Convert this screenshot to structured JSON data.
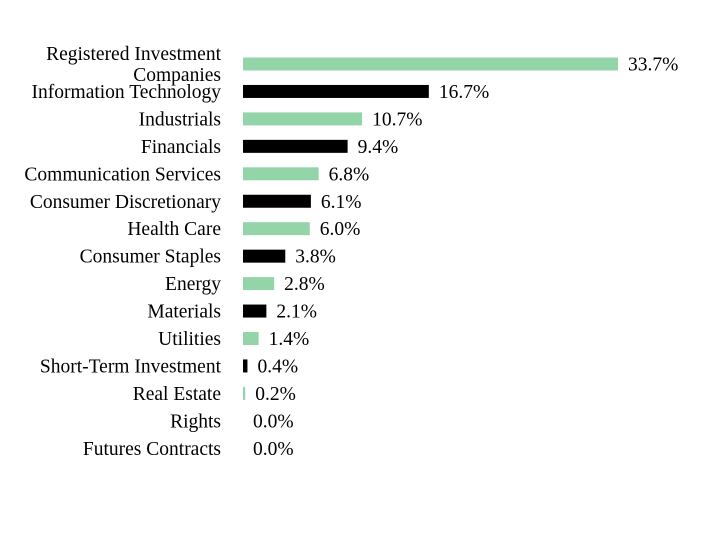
{
  "chart_data": {
    "type": "bar",
    "orientation": "horizontal",
    "categories": [
      "Registered Investment Companies",
      "Information Technology",
      "Industrials",
      "Financials",
      "Communication Services",
      "Consumer Discretionary",
      "Health Care",
      "Consumer Staples",
      "Energy",
      "Materials",
      "Utilities",
      "Short-Term Investment",
      "Real Estate",
      "Rights",
      "Futures Contracts"
    ],
    "values": [
      33.7,
      16.7,
      10.7,
      9.4,
      6.8,
      6.1,
      6.0,
      3.8,
      2.8,
      2.1,
      1.4,
      0.4,
      0.2,
      0.0,
      0.0
    ],
    "data_labels": [
      "33.7%",
      "16.7%",
      "10.7%",
      "9.4%",
      "6.8%",
      "6.1%",
      "6.0%",
      "3.8%",
      "2.8%",
      "2.1%",
      "1.4%",
      "0.4%",
      "0.2%",
      "0.0%",
      "0.0%"
    ],
    "unit": "%",
    "colors": [
      "#93D5A9",
      "#000000"
    ],
    "color_pattern": "alternating",
    "xlim": [
      0,
      34
    ],
    "grid": false,
    "legend": false,
    "title": "",
    "xlabel": "",
    "ylabel": ""
  }
}
